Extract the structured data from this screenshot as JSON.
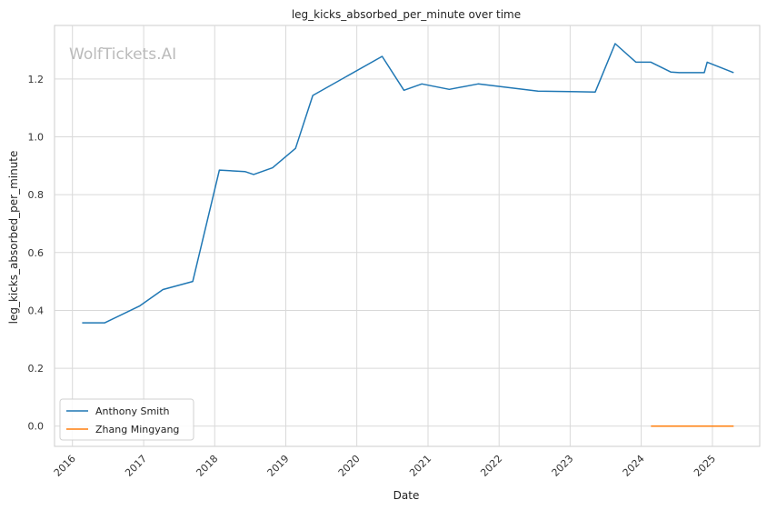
{
  "chart_data": {
    "type": "line",
    "title": "leg_kicks_absorbed_per_minute over time",
    "xlabel": "Date",
    "ylabel": "leg_kicks_absorbed_per_minute",
    "watermark": "WolfTickets.AI",
    "x_ticks": [
      "2016",
      "2017",
      "2018",
      "2019",
      "2020",
      "2021",
      "2022",
      "2023",
      "2024",
      "2025"
    ],
    "y_ticks": [
      "0.0",
      "0.2",
      "0.4",
      "0.6",
      "0.8",
      "1.0",
      "1.2"
    ],
    "xlim": [
      "2015-10-01",
      "2025-09-01"
    ],
    "ylim": [
      -0.07,
      1.385
    ],
    "grid": true,
    "legend_position": "lower-left",
    "series": [
      {
        "name": "Anthony Smith",
        "color": "#1f77b4",
        "points": [
          [
            "2016-02-20",
            0.357
          ],
          [
            "2016-06-15",
            0.357
          ],
          [
            "2016-12-10",
            0.415
          ],
          [
            "2017-04-10",
            0.472
          ],
          [
            "2017-09-10",
            0.5
          ],
          [
            "2018-01-25",
            0.885
          ],
          [
            "2018-06-05",
            0.88
          ],
          [
            "2018-07-20",
            0.87
          ],
          [
            "2018-10-25",
            0.893
          ],
          [
            "2019-02-20",
            0.96
          ],
          [
            "2019-05-20",
            1.143
          ],
          [
            "2020-05-10",
            1.278
          ],
          [
            "2020-08-30",
            1.161
          ],
          [
            "2020-11-30",
            1.183
          ],
          [
            "2021-04-20",
            1.164
          ],
          [
            "2021-09-15",
            1.183
          ],
          [
            "2022-07-20",
            1.158
          ],
          [
            "2023-05-10",
            1.155
          ],
          [
            "2023-08-20",
            1.322
          ],
          [
            "2023-12-05",
            1.258
          ],
          [
            "2024-02-20",
            1.258
          ],
          [
            "2024-06-01",
            1.224
          ],
          [
            "2024-07-15",
            1.222
          ],
          [
            "2024-11-20",
            1.222
          ],
          [
            "2024-12-05",
            1.258
          ],
          [
            "2025-04-20",
            1.222
          ]
        ]
      },
      {
        "name": "Zhang Mingyang",
        "color": "#ff7f0e",
        "points": [
          [
            "2024-02-20",
            0.0
          ],
          [
            "2025-04-20",
            0.0
          ]
        ]
      }
    ]
  }
}
